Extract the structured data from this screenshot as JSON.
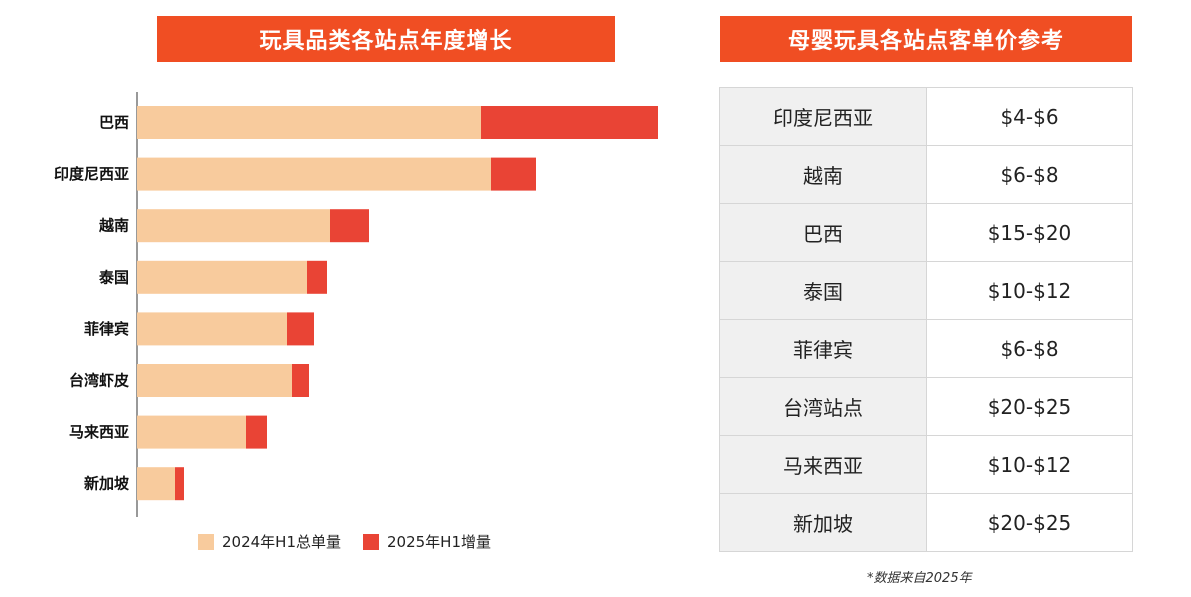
{
  "colors": {
    "banner": "#f04e23",
    "base": "#f8cb9d",
    "increment": "#e94435"
  },
  "left_title": "玩具品类各站点年度增长",
  "right_title": "母婴玩具各站点客单价参考",
  "chart_data": {
    "type": "bar",
    "orientation": "horizontal",
    "stacked": true,
    "title": "玩具品类各站点年度增长",
    "categories": [
      "巴西",
      "印度尼西亚",
      "越南",
      "泰国",
      "菲律宾",
      "台湾虾皮",
      "马来西亚",
      "新加坡"
    ],
    "series": [
      {
        "name": "2024年H1总单量",
        "values": [
          344,
          354,
          193,
          170,
          150,
          155,
          109,
          38
        ]
      },
      {
        "name": "2025年H1增量",
        "values": [
          177,
          45,
          39,
          20,
          27,
          17,
          21,
          9
        ]
      }
    ],
    "xlim": [
      0,
      521
    ],
    "x_axis_visible": false,
    "grid": false,
    "legend_position": "bottom"
  },
  "price_table": {
    "rows": [
      {
        "site": "印度尼西亚",
        "price": "$4-$6"
      },
      {
        "site": "越南",
        "price": "$6-$8"
      },
      {
        "site": "巴西",
        "price": "$15-$20"
      },
      {
        "site": "泰国",
        "price": "$10-$12"
      },
      {
        "site": "菲律宾",
        "price": "$6-$8"
      },
      {
        "site": "台湾站点",
        "price": "$20-$25"
      },
      {
        "site": "马来西亚",
        "price": "$10-$12"
      },
      {
        "site": "新加坡",
        "price": "$20-$25"
      }
    ]
  },
  "footnote": "*数据来自2025年"
}
